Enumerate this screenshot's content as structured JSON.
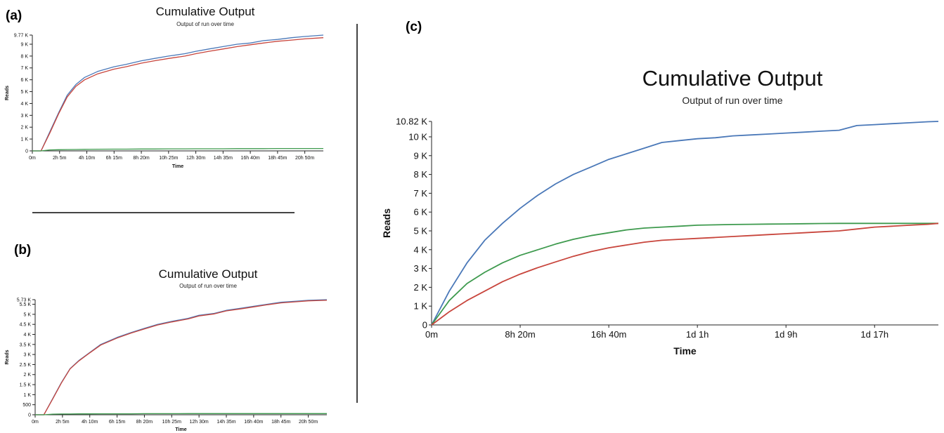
{
  "panels": {
    "a": {
      "label": "(a)"
    },
    "b": {
      "label": "(b)"
    },
    "c": {
      "label": "(c)"
    }
  },
  "colors": {
    "blue": "#4a78b8",
    "red": "#c8453c",
    "green": "#3e9a4e",
    "axis": "#222222"
  },
  "chart_data": [
    {
      "id": "a",
      "type": "line",
      "title": "Cumulative Output",
      "subtitle": "Output of run over time",
      "xlabel": "Time",
      "ylabel": "Reads",
      "xtick_labels": [
        "0m",
        "2h 5m",
        "4h 10m",
        "6h 15m",
        "8h 20m",
        "10h 25m",
        "12h 30m",
        "14h 35m",
        "16h 40m",
        "18h 45m",
        "20h 50m"
      ],
      "xtick_minutes": [
        0,
        125,
        250,
        375,
        500,
        625,
        750,
        875,
        1000,
        1125,
        1250
      ],
      "xlim_minutes": [
        0,
        1335
      ],
      "ytick_labels": [
        "0",
        "1 K",
        "2 K",
        "3 K",
        "4 K",
        "5 K",
        "6 K",
        "7 K",
        "8 K",
        "9 K",
        "9.77 K"
      ],
      "ytick_values": [
        0,
        1000,
        2000,
        3000,
        4000,
        5000,
        6000,
        7000,
        8000,
        9000,
        9770
      ],
      "ylim": [
        0,
        9770
      ],
      "x_minutes": [
        0,
        40,
        80,
        120,
        160,
        200,
        240,
        300,
        375,
        430,
        500,
        560,
        625,
        700,
        750,
        810,
        875,
        940,
        1000,
        1060,
        1125,
        1190,
        1250,
        1335
      ],
      "series": [
        {
          "color": "blue",
          "values": [
            0,
            0,
            1600,
            3200,
            4700,
            5600,
            6200,
            6700,
            7100,
            7300,
            7600,
            7800,
            8000,
            8200,
            8400,
            8600,
            8800,
            9000,
            9100,
            9300,
            9400,
            9550,
            9650,
            9770
          ]
        },
        {
          "color": "red",
          "values": [
            0,
            0,
            1500,
            3100,
            4550,
            5450,
            6000,
            6500,
            6900,
            7100,
            7400,
            7600,
            7800,
            8000,
            8200,
            8400,
            8600,
            8800,
            8950,
            9100,
            9250,
            9350,
            9450,
            9550
          ]
        },
        {
          "color": "green",
          "values": [
            0,
            0,
            80,
            100,
            110,
            120,
            130,
            140,
            150,
            150,
            160,
            160,
            170,
            170,
            180,
            180,
            180,
            190,
            190,
            190,
            200,
            200,
            200,
            200
          ]
        }
      ]
    },
    {
      "id": "b",
      "type": "line",
      "title": "Cumulative Output",
      "subtitle": "Output of run over time",
      "xlabel": "Time",
      "ylabel": "Reads",
      "xtick_labels": [
        "0m",
        "2h 5m",
        "4h 10m",
        "6h 15m",
        "8h 20m",
        "10h 25m",
        "12h 30m",
        "14h 35m",
        "16h 40m",
        "18h 45m",
        "20h 50m"
      ],
      "xtick_minutes": [
        0,
        125,
        250,
        375,
        500,
        625,
        750,
        875,
        1000,
        1125,
        1250
      ],
      "xlim_minutes": [
        0,
        1335
      ],
      "ytick_labels": [
        "0",
        "500",
        "1 K",
        "1.5 K",
        "2 K",
        "2.5 K",
        "3 K",
        "3.5 K",
        "4 K",
        "4.5 K",
        "5 K",
        "5.5 K",
        "5.73 K"
      ],
      "ytick_values": [
        0,
        500,
        1000,
        1500,
        2000,
        2500,
        3000,
        3500,
        4000,
        4500,
        5000,
        5500,
        5730
      ],
      "ylim": [
        0,
        5730
      ],
      "x_minutes": [
        0,
        40,
        80,
        120,
        160,
        200,
        250,
        300,
        375,
        440,
        500,
        560,
        625,
        700,
        750,
        820,
        875,
        940,
        1000,
        1060,
        1125,
        1190,
        1250,
        1335
      ],
      "series": [
        {
          "color": "blue",
          "values": [
            0,
            0,
            800,
            1600,
            2300,
            2700,
            3100,
            3500,
            3850,
            4100,
            4300,
            4500,
            4650,
            4800,
            4950,
            5050,
            5200,
            5300,
            5400,
            5500,
            5600,
            5650,
            5700,
            5730
          ]
        },
        {
          "color": "red",
          "values": [
            0,
            0,
            780,
            1580,
            2280,
            2680,
            3080,
            3470,
            3820,
            4070,
            4270,
            4470,
            4620,
            4770,
            4920,
            5020,
            5170,
            5270,
            5370,
            5470,
            5570,
            5620,
            5670,
            5700
          ]
        },
        {
          "color": "green",
          "values": [
            0,
            0,
            30,
            40,
            40,
            45,
            45,
            50,
            50,
            50,
            55,
            55,
            55,
            60,
            60,
            60,
            60,
            60,
            60,
            60,
            60,
            60,
            60,
            60
          ]
        }
      ]
    },
    {
      "id": "c",
      "type": "line",
      "title": "Cumulative Output",
      "subtitle": "Output of run over time",
      "xlabel": "Time",
      "ylabel": "Reads",
      "xtick_labels": [
        "0m",
        "8h 20m",
        "16h 40m",
        "1d 1h",
        "1d 9h",
        "1d 17h"
      ],
      "xtick_minutes": [
        0,
        500,
        1000,
        1500,
        2000,
        2500
      ],
      "xlim_minutes": [
        0,
        2860
      ],
      "ytick_labels": [
        "0",
        "1 K",
        "2 K",
        "3 K",
        "4 K",
        "5 K",
        "6 K",
        "7 K",
        "8 K",
        "9 K",
        "10 K",
        "10.82 K"
      ],
      "ytick_values": [
        0,
        1000,
        2000,
        3000,
        4000,
        5000,
        6000,
        7000,
        8000,
        9000,
        10000,
        10820
      ],
      "ylim": [
        0,
        10820
      ],
      "x_minutes": [
        0,
        100,
        200,
        300,
        400,
        500,
        600,
        700,
        800,
        900,
        1000,
        1100,
        1200,
        1300,
        1400,
        1500,
        1600,
        1700,
        1800,
        1900,
        2000,
        2100,
        2200,
        2300,
        2400,
        2500,
        2600,
        2700,
        2800,
        2860
      ],
      "series": [
        {
          "color": "blue",
          "values": [
            0,
            1800,
            3300,
            4500,
            5400,
            6200,
            6900,
            7500,
            8000,
            8400,
            8800,
            9100,
            9400,
            9700,
            9800,
            9900,
            9950,
            10050,
            10100,
            10150,
            10200,
            10250,
            10300,
            10350,
            10600,
            10650,
            10700,
            10750,
            10800,
            10820
          ]
        },
        {
          "color": "green",
          "values": [
            0,
            1300,
            2200,
            2800,
            3300,
            3700,
            4000,
            4300,
            4550,
            4750,
            4900,
            5050,
            5150,
            5200,
            5250,
            5300,
            5320,
            5340,
            5350,
            5360,
            5370,
            5380,
            5390,
            5400,
            5400,
            5400,
            5400,
            5400,
            5400,
            5400
          ]
        },
        {
          "color": "red",
          "values": [
            0,
            700,
            1300,
            1800,
            2300,
            2700,
            3050,
            3350,
            3650,
            3900,
            4100,
            4250,
            4400,
            4500,
            4550,
            4600,
            4650,
            4700,
            4750,
            4800,
            4850,
            4900,
            4950,
            5000,
            5100,
            5200,
            5250,
            5300,
            5350,
            5400
          ]
        }
      ]
    }
  ]
}
